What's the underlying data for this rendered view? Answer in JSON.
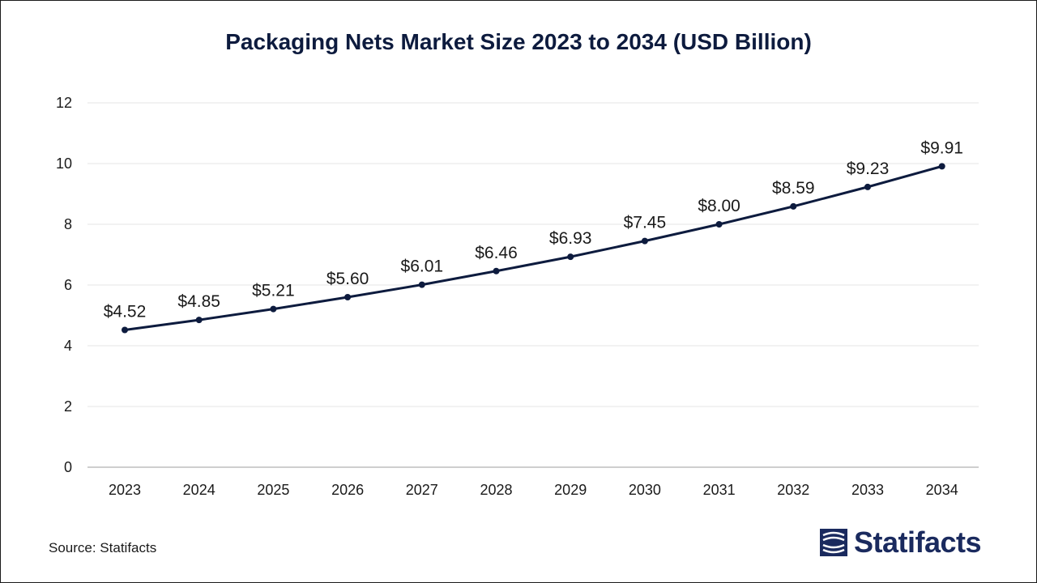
{
  "title": "Packaging Nets Market Size 2023 to 2034 (USD Billion)",
  "source": "Source: Statifacts",
  "brand": "Statifacts",
  "colors": {
    "line": "#0d1b3e",
    "point": "#0d1b3e",
    "grid": "#e6e6e6",
    "axis": "#bfbfbf",
    "text": "#1a1a1a",
    "brand": "#1a2a5e"
  },
  "chart_data": {
    "type": "line",
    "title": "Packaging Nets Market Size 2023 to 2034 (USD Billion)",
    "xlabel": "",
    "ylabel": "",
    "categories": [
      "2023",
      "2024",
      "2025",
      "2026",
      "2027",
      "2028",
      "2029",
      "2030",
      "2031",
      "2032",
      "2033",
      "2034"
    ],
    "values": [
      4.52,
      4.85,
      5.21,
      5.6,
      6.01,
      6.46,
      6.93,
      7.45,
      8.0,
      8.59,
      9.23,
      9.91
    ],
    "data_labels": [
      "$4.52",
      "$4.85",
      "$5.21",
      "$5.60",
      "$6.01",
      "$6.46",
      "$6.93",
      "$7.45",
      "$8.00",
      "$8.59",
      "$9.23",
      "$9.91"
    ],
    "ylim": [
      0,
      12
    ],
    "yticks": [
      "0",
      "2",
      "4",
      "6",
      "8",
      "10",
      "12"
    ],
    "grid": true,
    "legend": "none"
  }
}
